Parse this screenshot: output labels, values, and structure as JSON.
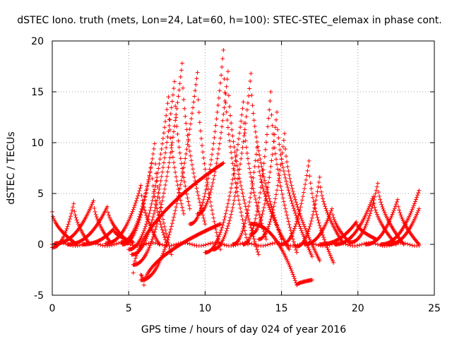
{
  "chart_data": {
    "type": "scatter",
    "title": "dSTEC Iono. truth (mets, Lon=24, Lat=60, h=100): STEC-STEC_elemax in phase cont.",
    "xlabel": "GPS time / hours of day 024 of year 2016",
    "ylabel": "dSTEC  / TECUs",
    "xlim": [
      0,
      25
    ],
    "ylim": [
      -5,
      20
    ],
    "x_ticks": [
      0,
      5,
      10,
      15,
      20,
      25
    ],
    "y_ticks": [
      -5,
      0,
      5,
      10,
      15,
      20
    ],
    "x_tick_labels": [
      "0",
      "5",
      "10",
      "15",
      "20",
      "25"
    ],
    "y_tick_labels": [
      "-5",
      "0",
      "5",
      "10",
      "15",
      "20"
    ],
    "grid": true,
    "marker": "plus",
    "color": "#ff0000",
    "arcs": [
      {
        "start": 0.0,
        "peak": 0.0,
        "end": 1.6,
        "peak_value": 3.2,
        "base_start": 3.2,
        "base_end": 0.0
      },
      {
        "start": 0.0,
        "peak": 1.4,
        "end": 2.4,
        "peak_value": 4.0,
        "base_start": -0.3,
        "base_end": 0.1
      },
      {
        "start": 0.2,
        "peak": 2.7,
        "end": 3.8,
        "peak_value": 4.3,
        "base_start": 0.1,
        "base_end": 0.2
      },
      {
        "start": 1.0,
        "peak": 3.6,
        "end": 5.0,
        "peak_value": 3.7,
        "base_start": 0.0,
        "base_end": 0.2
      },
      {
        "start": 2.0,
        "peak": 4.0,
        "end": 5.3,
        "peak_value": 1.5,
        "base_start": 0.0,
        "base_end": 0.2
      },
      {
        "start": 3.5,
        "peak": 5.8,
        "end": 7.0,
        "peak_value": 5.8,
        "base_start": 0.1,
        "base_end": 0.0
      },
      {
        "start": 4.5,
        "peak": 6.5,
        "end": 7.5,
        "peak_value": 8.0,
        "base_start": 0.2,
        "base_end": 0.0
      },
      {
        "start": 4.6,
        "peak": 6.7,
        "end": 7.8,
        "peak_value": 9.9,
        "base_start": 0.0,
        "base_end": -1.0
      },
      {
        "start": 5.0,
        "peak": 7.6,
        "end": 8.6,
        "peak_value": 14.5,
        "base_start": -0.5,
        "base_end": 3.0
      },
      {
        "start": 5.2,
        "peak": 8.0,
        "end": 9.0,
        "peak_value": 16.0,
        "base_start": -1.0,
        "base_end": 3.5
      },
      {
        "start": 5.3,
        "peak": 8.5,
        "end": 10.0,
        "peak_value": 17.8,
        "base_start": -2.0,
        "base_end": 2.0
      },
      {
        "start": 5.8,
        "peak": 9.5,
        "end": 11.0,
        "peak_value": 16.9,
        "base_start": -3.5,
        "base_end": -0.5
      },
      {
        "start": 9.0,
        "peak": 11.2,
        "end": 12.8,
        "peak_value": 19.1,
        "base_start": 2.0,
        "base_end": 0.0
      },
      {
        "start": 9.5,
        "peak": 11.5,
        "end": 13.5,
        "peak_value": 17.0,
        "base_start": 3.0,
        "base_end": -1.0
      },
      {
        "start": 10.0,
        "peak": 12.5,
        "end": 14.0,
        "peak_value": 14.0,
        "base_start": -0.8,
        "base_end": 0.5
      },
      {
        "start": 10.5,
        "peak": 13.0,
        "end": 15.0,
        "peak_value": 16.8,
        "base_start": -0.5,
        "base_end": 0.5
      },
      {
        "start": 11.8,
        "peak": 13.4,
        "end": 15.5,
        "peak_value": 9.5,
        "base_start": 0.0,
        "base_end": -0.5
      },
      {
        "start": 12.5,
        "peak": 14.3,
        "end": 16.0,
        "peak_value": 15.0,
        "base_start": 0.0,
        "base_end": -0.8
      },
      {
        "start": 13.0,
        "peak": 14.7,
        "end": 17.0,
        "peak_value": 13.0,
        "base_start": 1.0,
        "base_end": -1.2
      },
      {
        "start": 13.5,
        "peak": 15.2,
        "end": 17.5,
        "peak_value": 10.9,
        "base_start": 0.5,
        "base_end": -1.6
      },
      {
        "start": 15.0,
        "peak": 16.8,
        "end": 18.4,
        "peak_value": 8.2,
        "base_start": 0.0,
        "base_end": -1.8
      },
      {
        "start": 16.0,
        "peak": 17.5,
        "end": 19.0,
        "peak_value": 6.6,
        "base_start": -0.2,
        "base_end": 0.2
      },
      {
        "start": 16.5,
        "peak": 18.3,
        "end": 19.5,
        "peak_value": 3.5,
        "base_start": 0.0,
        "base_end": 0.1
      },
      {
        "start": 17.5,
        "peak": 19.9,
        "end": 21.2,
        "peak_value": 2.2,
        "base_start": 0.0,
        "base_end": 0.5
      },
      {
        "start": 18.5,
        "peak": 21.0,
        "end": 22.5,
        "peak_value": 4.7,
        "base_start": 0.0,
        "base_end": 0.0
      },
      {
        "start": 19.5,
        "peak": 21.3,
        "end": 23.0,
        "peak_value": 6.0,
        "base_start": 0.2,
        "base_end": 0.0
      },
      {
        "start": 20.5,
        "peak": 22.6,
        "end": 24.0,
        "peak_value": 4.4,
        "base_start": 0.0,
        "base_end": 0.0
      },
      {
        "start": 21.5,
        "peak": 24.0,
        "end": 24.0,
        "peak_value": 5.3,
        "base_start": 0.0,
        "base_end": 5.3
      },
      {
        "start": 22.0,
        "peak": 24.0,
        "end": 24.0,
        "peak_value": 3.5,
        "base_start": 0.0,
        "base_end": 3.5
      },
      {
        "start": 5.3,
        "peak": 5.3,
        "end": 11.2,
        "peak_value": -2.8,
        "base_start": -2.8,
        "base_end": 8.0
      },
      {
        "start": 5.8,
        "peak": 6.0,
        "end": 11.0,
        "peak_value": -4.0,
        "base_start": -3.0,
        "base_end": 2.0
      },
      {
        "start": 13.0,
        "peak": 16.0,
        "end": 17.0,
        "peak_value": -4.0,
        "base_start": 2.0,
        "base_end": -3.5
      }
    ],
    "baseline": {
      "start": 0.0,
      "end": 24.0,
      "value": 0.0
    }
  }
}
